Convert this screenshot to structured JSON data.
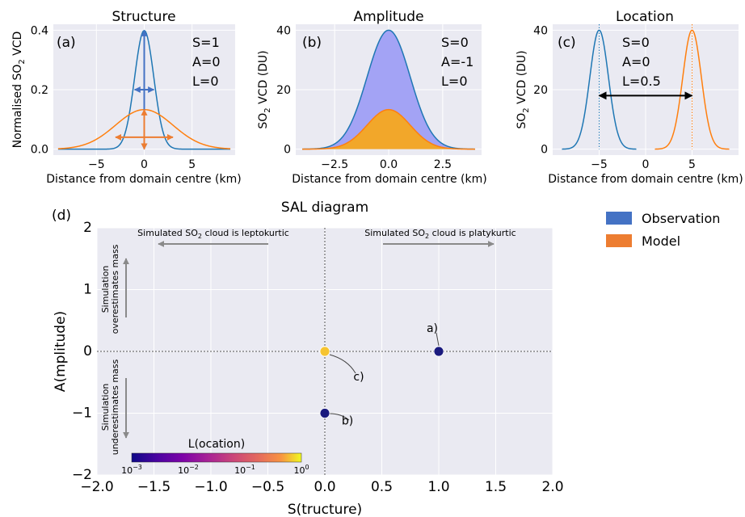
{
  "legend": {
    "items": [
      {
        "label": "Observation",
        "color": "#4472c4"
      },
      {
        "label": "Model",
        "color": "#ed7d31"
      }
    ],
    "placement": "top-right"
  },
  "chart_data": [
    {
      "id": "a",
      "type": "line",
      "panel_label": "(a)",
      "title": "Structure",
      "xlabel": "Distance from domain centre (km)",
      "ylabel": "Normalised SO2 VCD",
      "xlim": [
        -9.5,
        9.5
      ],
      "ylim": [
        -0.02,
        0.42
      ],
      "xticks": [
        -5,
        0,
        5
      ],
      "xticklabels": [
        "−5",
        "0",
        "5"
      ],
      "yticks": [
        0.0,
        0.2,
        0.4
      ],
      "yticklabels": [
        "0.0",
        "0.2",
        "0.4"
      ],
      "annotation": [
        "S=1",
        "A=0",
        "L=0"
      ],
      "series": [
        {
          "name": "Observation",
          "color": "#1f77b4",
          "gaussian": {
            "center": 0,
            "sigma": 1.0,
            "peak": 0.399
          },
          "x_range": [
            -9,
            9
          ]
        },
        {
          "name": "Model",
          "color": "#ff7f0e",
          "gaussian": {
            "center": 0,
            "sigma": 3.0,
            "peak": 0.133
          },
          "x_range": [
            -9,
            9
          ]
        }
      ],
      "width_arrows": [
        {
          "color": "#4472c4",
          "y": 0.2,
          "x1": -1.0,
          "x2": 1.0
        },
        {
          "color": "#ed7d31",
          "y": 0.04,
          "x1": -3.0,
          "x2": 3.0
        }
      ],
      "height_arrows": [
        {
          "color": "#4472c4",
          "x": 0,
          "y1": 0.0,
          "y2": 0.399
        },
        {
          "color": "#ed7d31",
          "x": 0,
          "y1": 0.0,
          "y2": 0.133
        }
      ]
    },
    {
      "id": "b",
      "type": "area",
      "panel_label": "(b)",
      "title": "Amplitude",
      "xlabel": "Distance from domain centre (km)",
      "ylabel": "SO2 VCD (DU)",
      "xlim": [
        -4.3,
        4.3
      ],
      "ylim": [
        -2,
        42
      ],
      "xticks": [
        -2.5,
        0,
        2.5
      ],
      "xticklabels": [
        "−2.5",
        "0.0",
        "2.5"
      ],
      "yticks": [
        0,
        20,
        40
      ],
      "yticklabels": [
        "0",
        "20",
        "40"
      ],
      "annotation": [
        "S=0",
        "A=-1",
        "L=0"
      ],
      "series": [
        {
          "name": "Observation",
          "color": "#1f77b4",
          "fill": "#a3a3f5",
          "gaussian": {
            "center": 0,
            "sigma": 1.0,
            "peak": 40
          },
          "x_range": [
            -4,
            4
          ]
        },
        {
          "name": "Model",
          "color": "#ff7f0e",
          "fill": "#f2a72a",
          "gaussian": {
            "center": 0,
            "sigma": 1.0,
            "peak": 13.3
          },
          "x_range": [
            -4,
            4
          ]
        }
      ]
    },
    {
      "id": "c",
      "type": "line",
      "panel_label": "(c)",
      "title": "Location",
      "xlabel": "Distance from domain centre (km)",
      "ylabel": "SO2 VCD (DU)",
      "xlim": [
        -10,
        10
      ],
      "ylim": [
        -2,
        42
      ],
      "xticks": [
        -5,
        0,
        5
      ],
      "xticklabels": [
        "−5",
        "0",
        "5"
      ],
      "yticks": [
        0,
        20,
        40
      ],
      "yticklabels": [
        "0",
        "20",
        "40"
      ],
      "annotation": [
        "S=0",
        "A=0",
        "L=0.5"
      ],
      "series": [
        {
          "name": "Observation",
          "color": "#1f77b4",
          "gaussian": {
            "center": -5,
            "sigma": 1.0,
            "peak": 40
          },
          "x_range": [
            -9,
            -1
          ]
        },
        {
          "name": "Model",
          "color": "#ff7f0e",
          "gaussian": {
            "center": 5,
            "sigma": 1.0,
            "peak": 40
          },
          "x_range": [
            1,
            9
          ]
        }
      ],
      "vlines": [
        {
          "x": -5,
          "color": "#1f77b4"
        },
        {
          "x": 5,
          "color": "#ff7f0e"
        }
      ],
      "distance_arrow": {
        "x1": -5,
        "x2": 5,
        "y": 18
      }
    },
    {
      "id": "d",
      "type": "scatter",
      "panel_label": "(d)",
      "title": "SAL diagram",
      "xlabel": "S(tructure)",
      "ylabel": "A(mplitude)",
      "xlim": [
        -2,
        2
      ],
      "ylim": [
        -2,
        2
      ],
      "xticks": [
        -2.0,
        -1.5,
        -1.0,
        -0.5,
        0.0,
        0.5,
        1.0,
        1.5,
        2.0
      ],
      "xticklabels": [
        "−2.0",
        "−1.5",
        "−1.0",
        "−0.5",
        "0.0",
        "0.5",
        "1.0",
        "1.5",
        "2.0"
      ],
      "yticks": [
        -2,
        -1,
        0,
        1,
        2
      ],
      "yticklabels": [
        "−2",
        "−1",
        "0",
        "1",
        "2"
      ],
      "grid": true,
      "points": [
        {
          "label": "a)",
          "S": 1,
          "A": 0,
          "L": 0.001,
          "color": "#1a1a7e"
        },
        {
          "label": "b)",
          "S": 0,
          "A": -1,
          "L": 0.001,
          "color": "#1a1a7e"
        },
        {
          "label": "c)",
          "S": 0,
          "A": 0,
          "L": 0.5,
          "color": "#f6c431"
        }
      ],
      "annotations": {
        "left": "Simulated SO2 cloud is leptokurtic",
        "right": "Simulated SO2 cloud is platykurtic",
        "up": [
          "Simulation",
          "overestimates mass"
        ],
        "down": [
          "Simulation",
          "underestimates mass"
        ]
      },
      "colorbar": {
        "label": "L(ocation)",
        "scale": "log",
        "range": [
          0.001,
          1
        ],
        "ticks": [
          "10",
          "10",
          "10",
          "10"
        ],
        "tick_exponents": [
          "−3",
          "−2",
          "−1",
          "0"
        ]
      }
    }
  ]
}
